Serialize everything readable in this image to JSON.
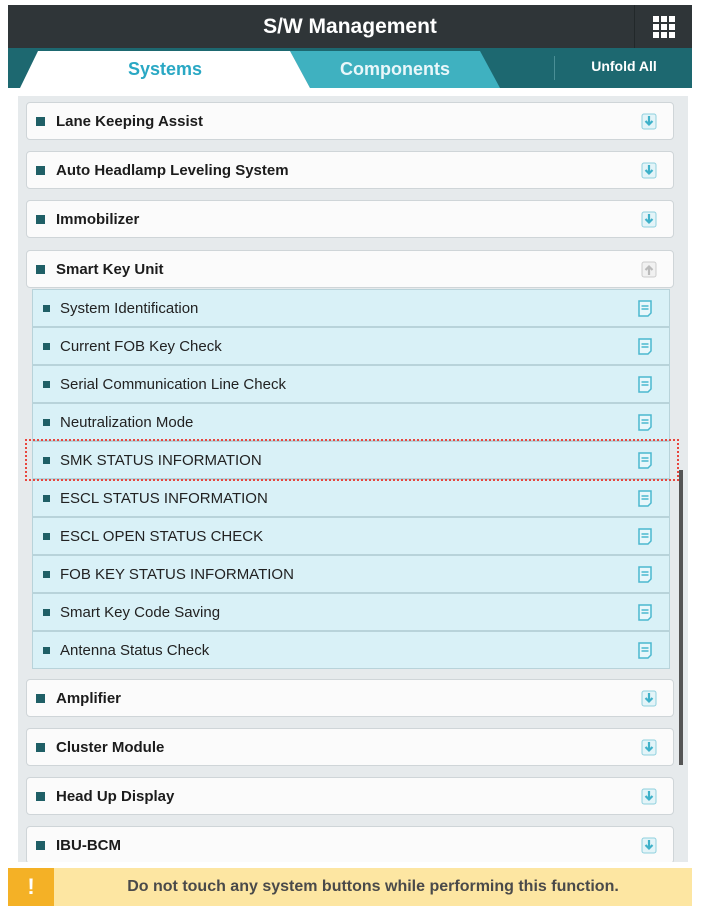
{
  "header": {
    "title": "S/W Management",
    "menu_icon": "grid-icon"
  },
  "tabs": {
    "systems": "Systems",
    "components": "Components",
    "unfold_all": "Unfold All",
    "active": "Systems"
  },
  "systems": [
    {
      "label": "Lane Keeping Assist",
      "state": "collapsed"
    },
    {
      "label": "Auto Headlamp Leveling System",
      "state": "collapsed"
    },
    {
      "label": "Immobilizer",
      "state": "collapsed"
    },
    {
      "label": "Smart Key Unit",
      "state": "expanded"
    },
    {
      "label": "Amplifier",
      "state": "collapsed"
    },
    {
      "label": "Cluster Module",
      "state": "collapsed"
    },
    {
      "label": "Head Up Display",
      "state": "collapsed"
    },
    {
      "label": "IBU-BCM",
      "state": "collapsed"
    }
  ],
  "smart_key_functions": [
    "System Identification",
    "Current FOB Key Check",
    "Serial Communication Line Check",
    "Neutralization Mode",
    "SMK STATUS INFORMATION",
    "ESCL STATUS INFORMATION",
    "ESCL OPEN STATUS CHECK",
    "FOB KEY STATUS INFORMATION",
    "Smart Key Code Saving",
    "Antenna Status Check"
  ],
  "highlighted_function": "SMK STATUS INFORMATION",
  "warning": {
    "icon": "!",
    "text": "Do not touch any system buttons while performing this function."
  },
  "colors": {
    "header": "#2f3538",
    "tabbar": "#1d6870",
    "accent": "#2aa8c4",
    "highlight": "#e8463e",
    "warning": "#fde6a2"
  }
}
